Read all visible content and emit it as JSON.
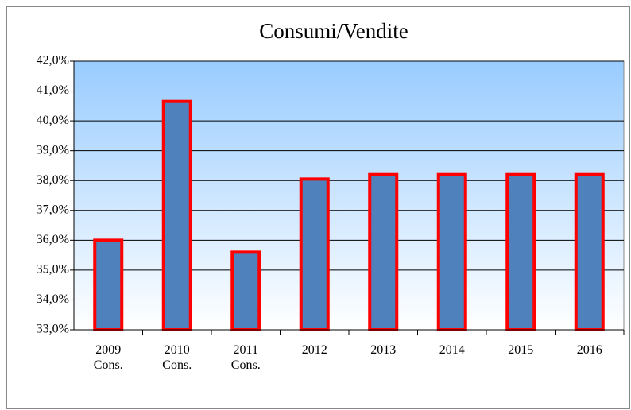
{
  "chart_data": {
    "type": "bar",
    "title": "Consumi/Vendite",
    "categories": [
      "2009\nCons.",
      "2010\nCons.",
      "2011\nCons.",
      "2012",
      "2013",
      "2014",
      "2015",
      "2016"
    ],
    "values": [
      36.0,
      40.65,
      35.6,
      38.05,
      38.2,
      38.2,
      38.2,
      38.2
    ],
    "color": "#4f81bd",
    "edge_color": "#ff0000",
    "ylim": [
      33,
      42
    ],
    "yticks": [
      {
        "value": 33,
        "label": "33,0%"
      },
      {
        "value": 34,
        "label": "34,0%"
      },
      {
        "value": 35,
        "label": "35,0%"
      },
      {
        "value": 36,
        "label": "36,0%"
      },
      {
        "value": 37,
        "label": "37,0%"
      },
      {
        "value": 38,
        "label": "38,0%"
      },
      {
        "value": 39,
        "label": "39,0%"
      },
      {
        "value": 40,
        "label": "40,0%"
      },
      {
        "value": 41,
        "label": "41,0%"
      },
      {
        "value": 42,
        "label": "42,0%"
      }
    ],
    "grid": true
  }
}
